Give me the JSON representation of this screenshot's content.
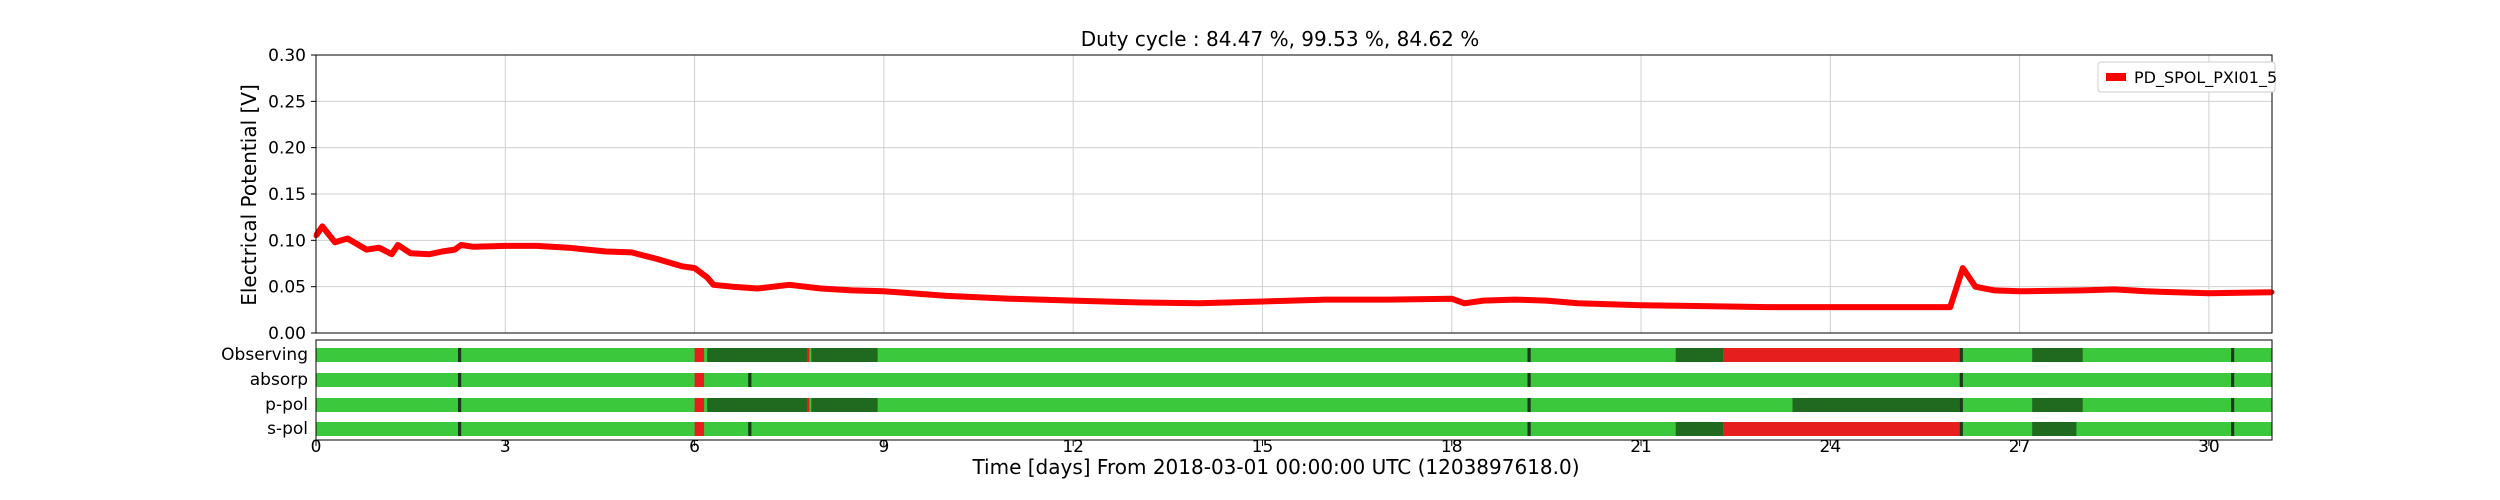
{
  "chart_data": {
    "type": "line",
    "title": "Duty cycle : 84.47 %, 99.53 %, 84.62 %",
    "xlabel": "Time [days] From 2018-03-01 00:00:00 UTC (1203897618.0)",
    "ylabel": "Electrical Potential [V]",
    "xlim": [
      0,
      31
    ],
    "ylim": [
      0,
      0.3
    ],
    "x_ticks": [
      "0",
      "3",
      "6",
      "9",
      "12",
      "15",
      "18",
      "21",
      "24",
      "27",
      "30"
    ],
    "y_ticks": [
      "0.00",
      "0.05",
      "0.10",
      "0.15",
      "0.20",
      "0.25",
      "0.30"
    ],
    "grid": true,
    "legend_position": "top-right",
    "series": [
      {
        "name": "PD_SPOL_PXI01_5",
        "color": "#ff0000",
        "x": [
          0,
          0.1,
          0.3,
          0.5,
          0.8,
          1.0,
          1.2,
          1.3,
          1.5,
          1.8,
          2.0,
          2.2,
          2.3,
          2.5,
          3.0,
          3.5,
          4.0,
          4.3,
          4.6,
          5.0,
          5.4,
          5.8,
          6.0,
          6.2,
          6.3,
          6.6,
          7.0,
          7.5,
          8.0,
          8.5,
          9.0,
          10.0,
          11.0,
          12.0,
          13.0,
          14.0,
          15.0,
          16.0,
          17.0,
          18.0,
          18.2,
          18.5,
          19.0,
          19.5,
          20.0,
          21.0,
          22.0,
          23.0,
          24.0,
          25.0,
          25.9,
          26.1,
          26.3,
          26.6,
          27.0,
          28.0,
          28.5,
          29.0,
          30.0,
          31.0
        ],
        "y": [
          0.105,
          0.115,
          0.098,
          0.102,
          0.09,
          0.092,
          0.085,
          0.095,
          0.086,
          0.085,
          0.088,
          0.09,
          0.095,
          0.093,
          0.094,
          0.094,
          0.092,
          0.09,
          0.088,
          0.087,
          0.08,
          0.072,
          0.07,
          0.06,
          0.052,
          0.05,
          0.048,
          0.052,
          0.048,
          0.046,
          0.045,
          0.04,
          0.037,
          0.035,
          0.033,
          0.032,
          0.034,
          0.036,
          0.036,
          0.037,
          0.032,
          0.035,
          0.036,
          0.035,
          0.032,
          0.03,
          0.029,
          0.028,
          0.028,
          0.028,
          0.028,
          0.07,
          0.05,
          0.046,
          0.045,
          0.046,
          0.047,
          0.045,
          0.043,
          0.044
        ]
      }
    ],
    "segment_rows": [
      {
        "label": "Observing",
        "segments": [
          {
            "x0": 0,
            "x1": 31,
            "state": "active"
          },
          {
            "x0": 2.25,
            "x1": 2.3,
            "state": "gap"
          },
          {
            "x0": 6.0,
            "x1": 6.15,
            "state": "veto"
          },
          {
            "x0": 6.2,
            "x1": 7.8,
            "state": "flagged"
          },
          {
            "x0": 7.78,
            "x1": 7.82,
            "state": "veto"
          },
          {
            "x0": 7.85,
            "x1": 8.9,
            "state": "flagged"
          },
          {
            "x0": 19.2,
            "x1": 19.25,
            "state": "gap"
          },
          {
            "x0": 21.55,
            "x1": 22.3,
            "state": "flagged"
          },
          {
            "x0": 22.3,
            "x1": 26.05,
            "state": "veto"
          },
          {
            "x0": 26.05,
            "x1": 26.1,
            "state": "gap"
          },
          {
            "x0": 27.2,
            "x1": 28.0,
            "state": "flagged"
          },
          {
            "x0": 30.35,
            "x1": 30.4,
            "state": "gap"
          }
        ]
      },
      {
        "label": "absorp",
        "segments": [
          {
            "x0": 0,
            "x1": 31,
            "state": "active"
          },
          {
            "x0": 2.25,
            "x1": 2.3,
            "state": "gap"
          },
          {
            "x0": 6.0,
            "x1": 6.15,
            "state": "veto"
          },
          {
            "x0": 6.85,
            "x1": 6.9,
            "state": "gap"
          },
          {
            "x0": 19.2,
            "x1": 19.25,
            "state": "gap"
          },
          {
            "x0": 26.05,
            "x1": 26.1,
            "state": "gap"
          },
          {
            "x0": 30.35,
            "x1": 30.4,
            "state": "gap"
          }
        ]
      },
      {
        "label": "p-pol",
        "segments": [
          {
            "x0": 0,
            "x1": 31,
            "state": "active"
          },
          {
            "x0": 2.25,
            "x1": 2.3,
            "state": "gap"
          },
          {
            "x0": 6.0,
            "x1": 6.15,
            "state": "veto"
          },
          {
            "x0": 6.2,
            "x1": 7.8,
            "state": "flagged"
          },
          {
            "x0": 7.78,
            "x1": 7.82,
            "state": "veto"
          },
          {
            "x0": 7.85,
            "x1": 8.9,
            "state": "flagged"
          },
          {
            "x0": 19.2,
            "x1": 19.25,
            "state": "gap"
          },
          {
            "x0": 23.4,
            "x1": 26.05,
            "state": "flagged"
          },
          {
            "x0": 26.05,
            "x1": 26.1,
            "state": "gap"
          },
          {
            "x0": 27.2,
            "x1": 28.0,
            "state": "flagged"
          },
          {
            "x0": 30.35,
            "x1": 30.4,
            "state": "gap"
          }
        ]
      },
      {
        "label": "s-pol",
        "segments": [
          {
            "x0": 0,
            "x1": 31,
            "state": "active"
          },
          {
            "x0": 2.25,
            "x1": 2.3,
            "state": "gap"
          },
          {
            "x0": 6.0,
            "x1": 6.15,
            "state": "veto"
          },
          {
            "x0": 6.85,
            "x1": 6.9,
            "state": "gap"
          },
          {
            "x0": 19.2,
            "x1": 19.25,
            "state": "gap"
          },
          {
            "x0": 21.55,
            "x1": 22.3,
            "state": "flagged"
          },
          {
            "x0": 22.3,
            "x1": 26.05,
            "state": "veto"
          },
          {
            "x0": 26.05,
            "x1": 26.1,
            "state": "gap"
          },
          {
            "x0": 27.2,
            "x1": 27.9,
            "state": "flagged"
          },
          {
            "x0": 30.35,
            "x1": 30.4,
            "state": "gap"
          }
        ]
      }
    ],
    "state_colors": {
      "active": "#3cc83c",
      "flagged": "#1f6a1f",
      "veto": "#e61e1e",
      "gap": "#1a3a1a"
    }
  }
}
